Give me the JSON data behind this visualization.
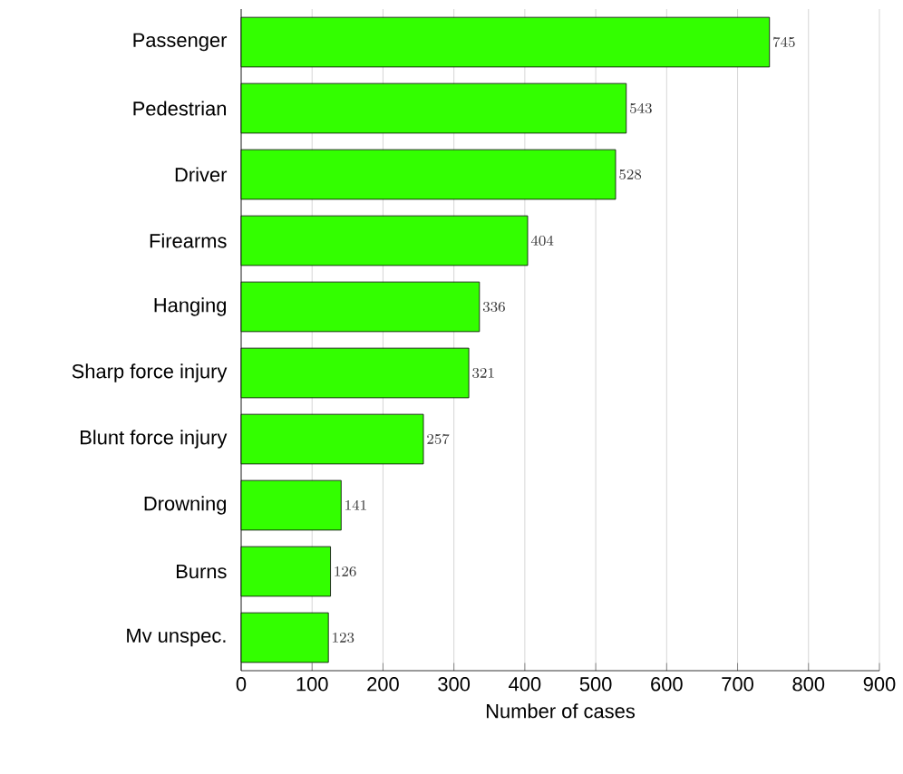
{
  "chart_data": {
    "type": "bar",
    "orientation": "horizontal",
    "xlabel": "Number of cases",
    "categories": [
      "Passenger",
      "Pedestrian",
      "Driver",
      "Firearms",
      "Hanging",
      "Sharp force injury",
      "Blunt force injury",
      "Drowning",
      "Burns",
      "Mv unspec."
    ],
    "values": [
      745,
      543,
      528,
      404,
      336,
      321,
      257,
      141,
      126,
      123
    ],
    "color": "#33ff00",
    "xlim": [
      0,
      900
    ],
    "xticks": [
      0,
      100,
      200,
      300,
      400,
      500,
      600,
      700,
      800,
      900
    ],
    "grid": "x",
    "data_labels": true
  }
}
